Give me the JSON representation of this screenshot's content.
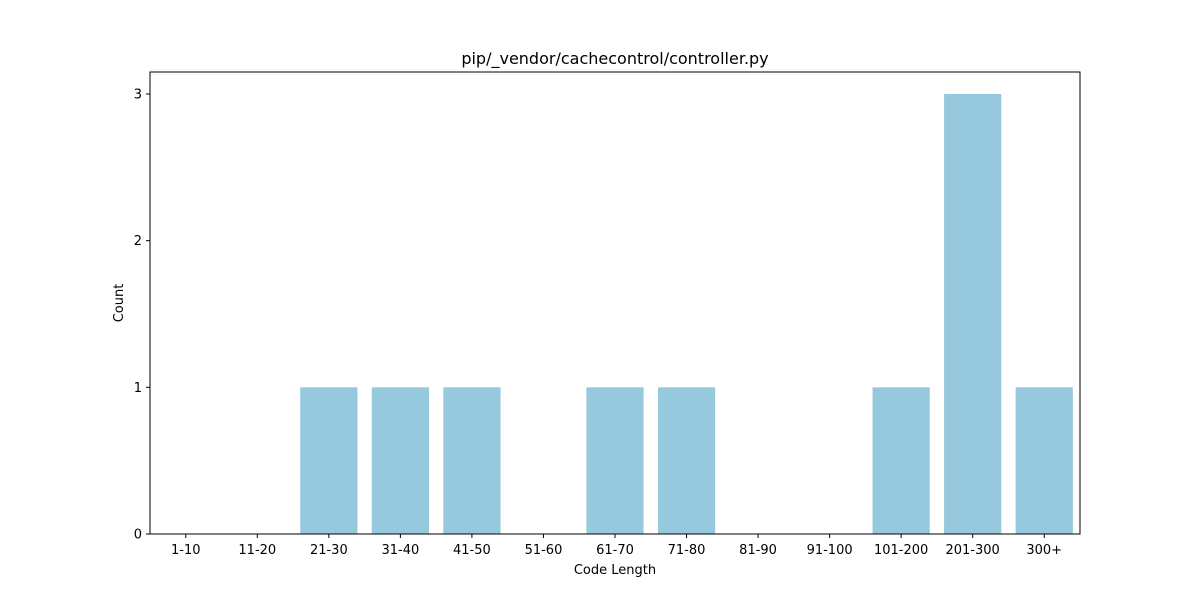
{
  "chart_data": {
    "type": "bar",
    "title": "pip/_vendor/cachecontrol/controller.py",
    "xlabel": "Code Length",
    "ylabel": "Count",
    "categories": [
      "1-10",
      "11-20",
      "21-30",
      "31-40",
      "41-50",
      "51-60",
      "61-70",
      "71-80",
      "81-90",
      "91-100",
      "101-200",
      "201-300",
      "300+"
    ],
    "values": [
      0,
      0,
      1,
      1,
      1,
      0,
      1,
      1,
      0,
      0,
      1,
      3,
      1
    ],
    "ylim": [
      0,
      3.15
    ],
    "yticks": [
      0,
      1,
      2,
      3
    ],
    "grid": false,
    "legend": "none",
    "bar_color": "#96c9de"
  }
}
